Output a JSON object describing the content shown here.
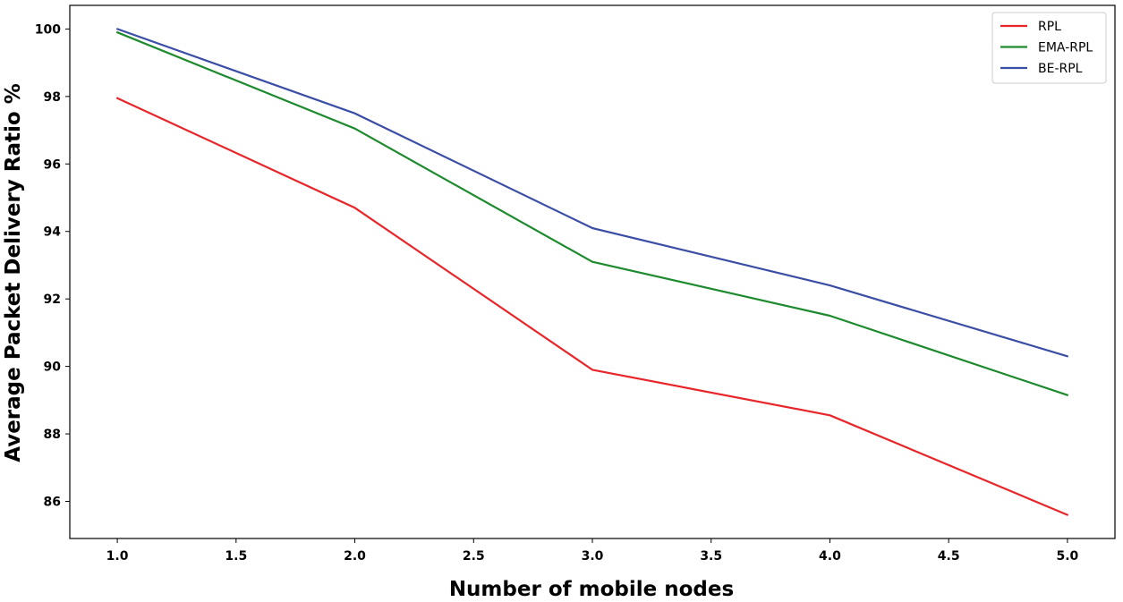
{
  "chart_data": {
    "type": "line",
    "title": "",
    "xlabel": "Number of mobile nodes",
    "ylabel": "Average Packet Delivery Ratio %",
    "x": [
      1.0,
      2.0,
      3.0,
      4.0,
      5.0
    ],
    "xlim": [
      0.8,
      5.2
    ],
    "ylim": [
      84.9,
      100.7
    ],
    "xticks": [
      "1.0",
      "1.5",
      "2.0",
      "2.5",
      "3.0",
      "3.5",
      "4.0",
      "4.5",
      "5.0"
    ],
    "yticks": [
      "86",
      "88",
      "90",
      "92",
      "94",
      "96",
      "98",
      "100"
    ],
    "grid": false,
    "legend_position": "top-right",
    "series": [
      {
        "name": "RPL",
        "color": "#e8262a",
        "values": [
          97.95,
          94.7,
          89.9,
          88.55,
          85.6
        ]
      },
      {
        "name": "EMA-RPL",
        "color": "#1e8a2e",
        "values": [
          99.9,
          97.05,
          93.1,
          91.5,
          89.15
        ]
      },
      {
        "name": "BE-RPL",
        "color": "#3b4ea6",
        "values": [
          100.0,
          97.5,
          94.1,
          92.4,
          90.3
        ]
      }
    ]
  }
}
